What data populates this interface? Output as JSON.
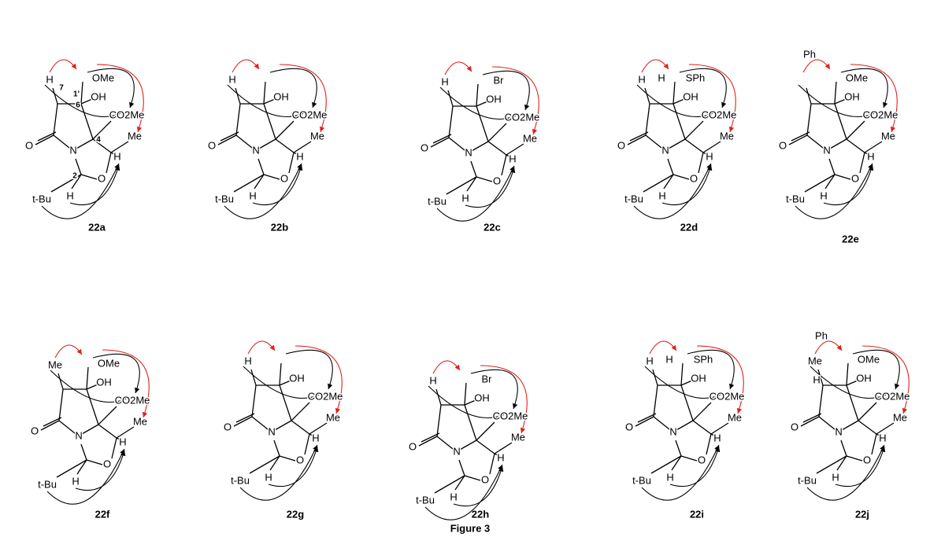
{
  "compounds": [
    {
      "name": "22a",
      "labels": {
        "h7": "H",
        "side": "OMe",
        "c1": "1'",
        "oh": "OH",
        "c7": "7",
        "c6": "6",
        "ester": "CO2Me",
        "oc": "O",
        "n": "N",
        "c4": "4",
        "me": "Me",
        "c2": "2",
        "h4": "H",
        "or": "O",
        "tbu": "t-Bu",
        "h2": "H"
      }
    },
    {
      "name": "22b",
      "labels": {
        "h7": "H",
        "oh": "OH",
        "ester": "CO2Me",
        "oc": "O",
        "n": "N",
        "me": "Me",
        "h4": "H",
        "or": "O",
        "tbu": "t-Bu",
        "h2": "H"
      }
    },
    {
      "name": "22c",
      "labels": {
        "h7": "H",
        "side": "Br",
        "oh": "OH",
        "ester": "CO2Me",
        "oc": "O",
        "n": "N",
        "me": "Me",
        "h4": "H",
        "or": "O",
        "tbu": "t-Bu",
        "h2": "H"
      }
    },
    {
      "name": "22d",
      "labels": {
        "h7": "H",
        "h1": "H",
        "side": "SPh",
        "oh": "OH",
        "ester": "CO2Me",
        "oc": "O",
        "n": "N",
        "me": "Me",
        "h4": "H",
        "or": "O",
        "tbu": "t-Bu",
        "h2": "H"
      }
    },
    {
      "name": "22e",
      "labels": {
        "ph": "Ph",
        "side": "OMe",
        "oh": "OH",
        "ester": "CO2Me",
        "oc": "O",
        "n": "N",
        "me": "Me",
        "h4": "H",
        "or": "O",
        "tbu": "t-Bu",
        "h2": "H"
      }
    },
    {
      "name": "22f",
      "labels": {
        "h7": "Me",
        "side": "OMe",
        "oh": "OH",
        "ester": "CO2Me",
        "oc": "O",
        "n": "N",
        "me": "Me",
        "h4": "H",
        "or": "O",
        "tbu": "t-Bu",
        "h2": "H"
      }
    },
    {
      "name": "22g",
      "labels": {
        "h7": "H",
        "oh": "OH",
        "ester": "CO2Me",
        "oc": "O",
        "n": "N",
        "me": "Me",
        "h4": "H",
        "or": "O",
        "tbu": "t-Bu",
        "h2": "H"
      }
    },
    {
      "name": "22h",
      "labels": {
        "h7": "H",
        "side": "Br",
        "oh": "OH",
        "ester": "CO2Me",
        "oc": "O",
        "n": "N",
        "me": "Me",
        "h4": "H",
        "or": "O",
        "tbu": "t-Bu",
        "h2": "H"
      }
    },
    {
      "name": "22i",
      "labels": {
        "h7": "H",
        "h1": "H",
        "side": "SPh",
        "oh": "OH",
        "ester": "CO2Me",
        "oc": "O",
        "n": "N",
        "me": "Me",
        "h4": "H",
        "or": "O",
        "tbu": "t-Bu",
        "h2": "H"
      }
    },
    {
      "name": "22j",
      "labels": {
        "h7": "Me",
        "h7b": "H",
        "ph": "Ph",
        "side": "OMe",
        "oh": "OH",
        "ester": "CO2Me",
        "oc": "O",
        "n": "N",
        "me": "Me",
        "h4": "H",
        "or": "O",
        "tbu": "t-Bu",
        "h2": "H"
      }
    }
  ],
  "caption": "Figure 3"
}
